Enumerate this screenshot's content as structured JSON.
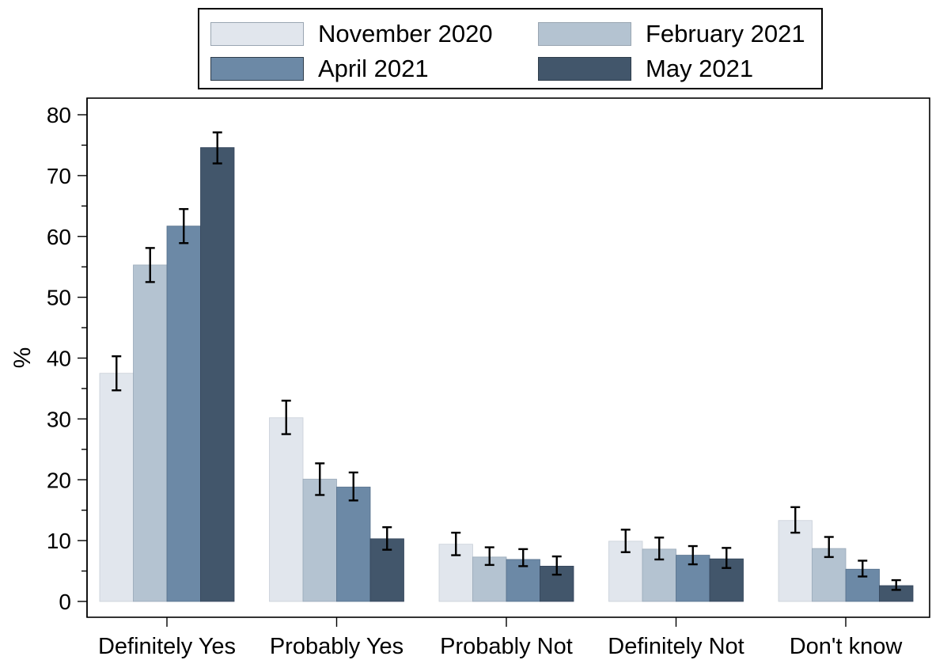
{
  "chart_data": {
    "type": "bar",
    "title": "",
    "xlabel": "",
    "ylabel": "%",
    "ylim": [
      0,
      80
    ],
    "yticks": [
      0,
      10,
      20,
      30,
      40,
      50,
      60,
      70,
      80
    ],
    "grid": false,
    "legend_position": "top-center",
    "categories": [
      "Definitely Yes",
      "Probably Yes",
      "Probably Not",
      "Definitely Not",
      "Don't know"
    ],
    "series": [
      {
        "name": "November 2020",
        "color": "#e1e6ed",
        "values": [
          37.5,
          30.2,
          9.4,
          9.9,
          13.3
        ],
        "ci_low": [
          34.7,
          27.5,
          7.6,
          8.1,
          11.3
        ],
        "ci_high": [
          40.3,
          33.0,
          11.3,
          11.8,
          15.5
        ]
      },
      {
        "name": "February 2021",
        "color": "#b4c3d1",
        "values": [
          55.3,
          20.1,
          7.3,
          8.6,
          8.7
        ],
        "ci_low": [
          52.5,
          17.5,
          6.0,
          6.9,
          7.3
        ],
        "ci_high": [
          58.1,
          22.7,
          8.9,
          10.5,
          10.6
        ]
      },
      {
        "name": "April 2021",
        "color": "#6c89a6",
        "values": [
          61.7,
          18.8,
          6.9,
          7.6,
          5.3
        ],
        "ci_low": [
          58.9,
          16.6,
          5.8,
          6.1,
          4.1
        ],
        "ci_high": [
          64.5,
          21.2,
          8.6,
          9.1,
          6.7
        ]
      },
      {
        "name": "May 2021",
        "color": "#42566b",
        "values": [
          74.6,
          10.3,
          5.8,
          7.0,
          2.6
        ],
        "ci_low": [
          72.0,
          8.5,
          4.4,
          5.5,
          1.9
        ],
        "ci_high": [
          77.1,
          12.2,
          7.4,
          8.8,
          3.5
        ]
      }
    ]
  }
}
